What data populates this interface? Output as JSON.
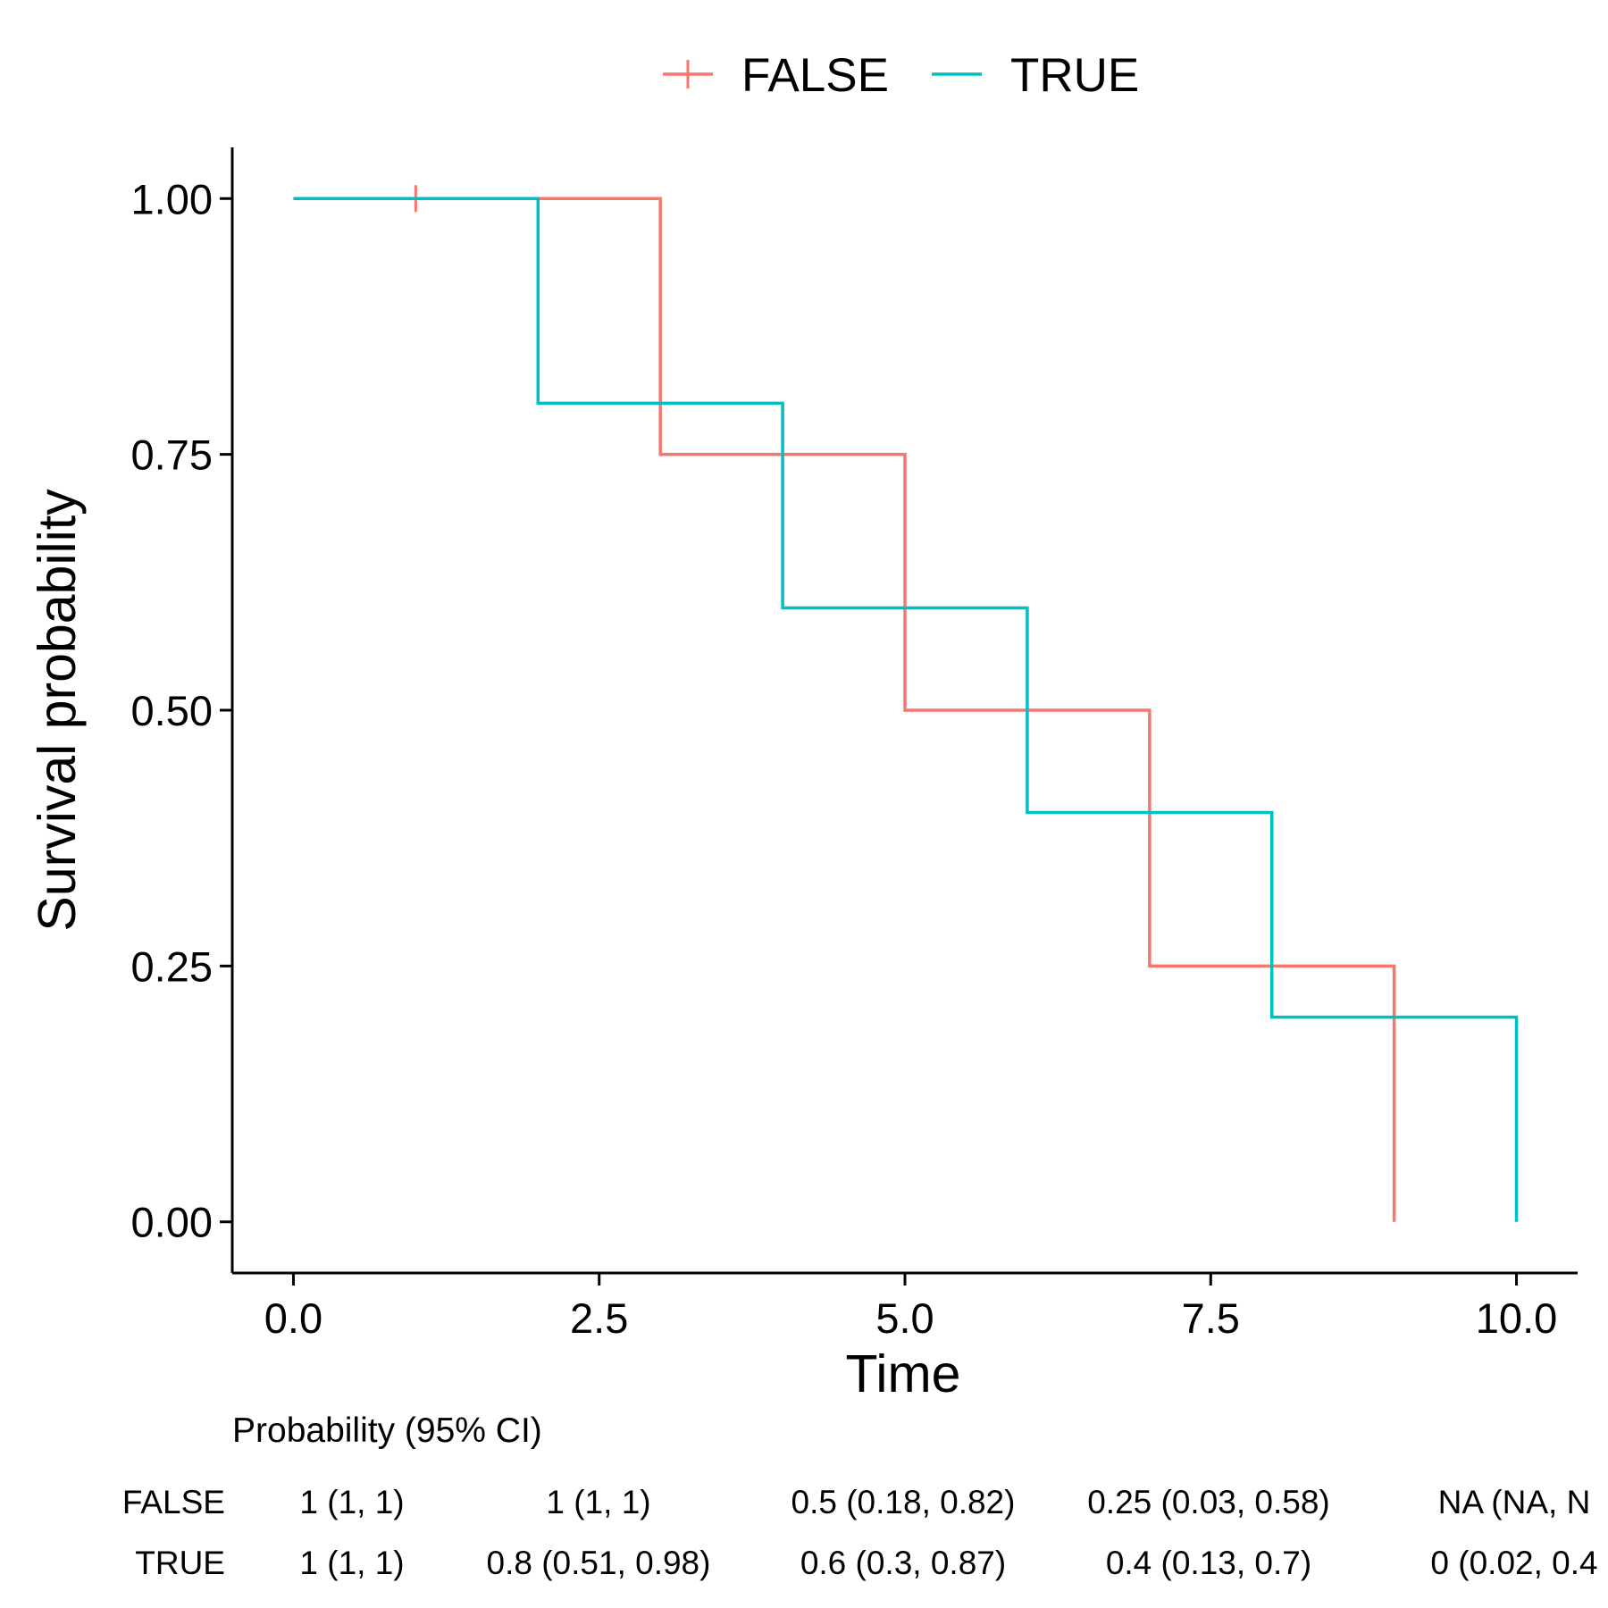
{
  "chart_data": {
    "type": "line",
    "xlabel": "Time",
    "ylabel": "Survival probability",
    "xlim": [
      -0.5,
      10.5
    ],
    "ylim": [
      -0.05,
      1.05
    ],
    "x_ticks": [
      0,
      2.5,
      5,
      7.5,
      10
    ],
    "x_tick_labels": [
      "0.0",
      "2.5",
      "5.0",
      "7.5",
      "10.0"
    ],
    "y_ticks": [
      0,
      0.25,
      0.5,
      0.75,
      1
    ],
    "y_tick_labels": [
      "0.00",
      "0.25",
      "0.50",
      "0.75",
      "1.00"
    ],
    "grid": false,
    "legend_position": "top",
    "series": [
      {
        "name": "FALSE",
        "color": "#F8766D",
        "step": true,
        "x": [
          0,
          3,
          5,
          7,
          9
        ],
        "y": [
          1,
          0.75,
          0.5,
          0.25,
          0
        ],
        "censor_x": [
          1
        ],
        "censor_y": [
          1
        ]
      },
      {
        "name": "TRUE",
        "color": "#00BFC4",
        "step": true,
        "x": [
          0,
          2,
          4,
          6,
          8,
          10
        ],
        "y": [
          1,
          0.8,
          0.6,
          0.4,
          0.2,
          0
        ]
      }
    ],
    "table": {
      "title": "Probability (95% CI)",
      "rows": [
        {
          "label": "FALSE",
          "cells": [
            "1 (1, 1)",
            "1 (1, 1)",
            "0.5 (0.18, 0.82)",
            "0.25 (0.03, 0.58)",
            "NA (NA, N"
          ]
        },
        {
          "label": "TRUE",
          "cells": [
            "1 (1, 1)",
            "0.8 (0.51, 0.98)",
            "0.6 (0.3, 0.87)",
            "0.4 (0.13, 0.7)",
            "0 (0.02, 0.4"
          ]
        }
      ]
    }
  }
}
